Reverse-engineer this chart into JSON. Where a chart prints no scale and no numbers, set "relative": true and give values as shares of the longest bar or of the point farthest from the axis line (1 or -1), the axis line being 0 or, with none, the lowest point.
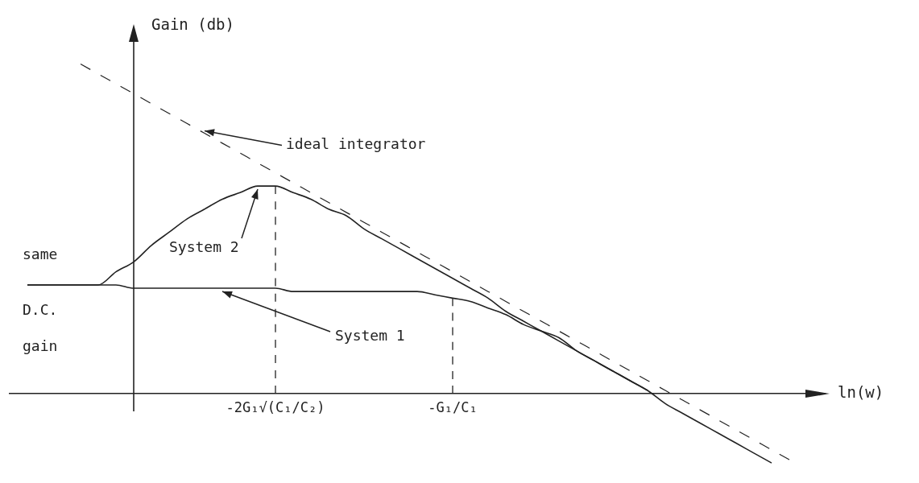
{
  "chart_data": {
    "type": "line",
    "relative": true,
    "xlabel": "ln(w)",
    "ylabel": "Gain (db)",
    "tick_labels": "x",
    "categories": [
      null,
      null,
      null,
      null,
      null,
      null,
      null,
      null,
      null,
      null,
      null,
      null,
      null,
      null,
      null,
      "-2G₁√(C₁/C₂)",
      null,
      null,
      null,
      null,
      null,
      null,
      null,
      null,
      null,
      "-G₁/C₁",
      null,
      null,
      null,
      null,
      null,
      null,
      null,
      null,
      null,
      null,
      null,
      null,
      null,
      null,
      null,
      null,
      null,
      null,
      null,
      null,
      null
    ],
    "series": [
      {
        "name": "ideal integrator",
        "color": "#222222",
        "line_style": "dashed",
        "values": [
          null,
          null,
          null,
          null,
          1,
          0.97,
          0.94,
          0.91,
          0.88,
          0.85,
          0.82,
          0.79,
          0.76,
          0.73,
          0.7,
          0.67,
          0.64,
          0.61,
          0.58,
          0.55,
          0.52,
          0.49,
          0.46,
          0.43,
          0.4,
          0.37,
          0.34,
          0.31,
          0.28,
          0.25,
          0.22,
          0.19,
          0.16,
          0.13,
          0.1,
          0.07,
          0.04,
          0.01,
          -0.02,
          -0.05,
          -0.08,
          -0.11,
          -0.14,
          -0.17,
          -0.2,
          null,
          null
        ]
      },
      {
        "name": "System 2",
        "color": "#222222",
        "values": [
          null,
          0.33,
          0.33,
          0.33,
          0.33,
          0.33,
          0.37,
          0.4,
          0.45,
          0.49,
          0.53,
          0.56,
          0.59,
          0.61,
          0.63,
          0.63,
          0.61,
          0.59,
          0.56,
          0.54,
          0.5,
          0.47,
          0.44,
          0.41,
          0.38,
          0.35,
          0.32,
          0.29,
          0.25,
          0.22,
          0.19,
          0.16,
          0.13,
          0.1,
          0.07,
          0.04,
          0.01,
          -0.03,
          -0.06,
          -0.09,
          -0.12,
          -0.15,
          -0.18,
          -0.21,
          null,
          null,
          null
        ]
      },
      {
        "name": "System 1",
        "color": "#222222",
        "values": [
          null,
          0.33,
          0.33,
          0.33,
          0.33,
          0.33,
          0.33,
          0.32,
          0.32,
          0.32,
          0.32,
          0.32,
          0.32,
          0.32,
          0.32,
          0.32,
          0.31,
          0.31,
          0.31,
          0.31,
          0.31,
          0.31,
          0.31,
          0.31,
          0.3,
          0.29,
          0.28,
          0.26,
          0.24,
          0.21,
          0.19,
          0.17,
          0.13,
          0.1,
          0.07,
          0.04,
          0.01,
          null,
          null,
          null,
          null,
          null,
          null,
          null,
          null,
          null,
          null
        ]
      },
      {
        "type": "line",
        "color": "#222222",
        "line_style": "dashed",
        "x": [
          "-2G₁√(C₁/C₂)",
          "-2G₁√(C₁/C₂)"
        ],
        "values": [
          0,
          0.63
        ]
      },
      {
        "type": "line",
        "color": "#222222",
        "line_style": "dashed",
        "x": [
          "-G₁/C₁",
          "-G₁/C₁"
        ],
        "values": [
          0,
          0.29
        ]
      }
    ],
    "annotations": [
      "same D.C. gain"
    ]
  }
}
